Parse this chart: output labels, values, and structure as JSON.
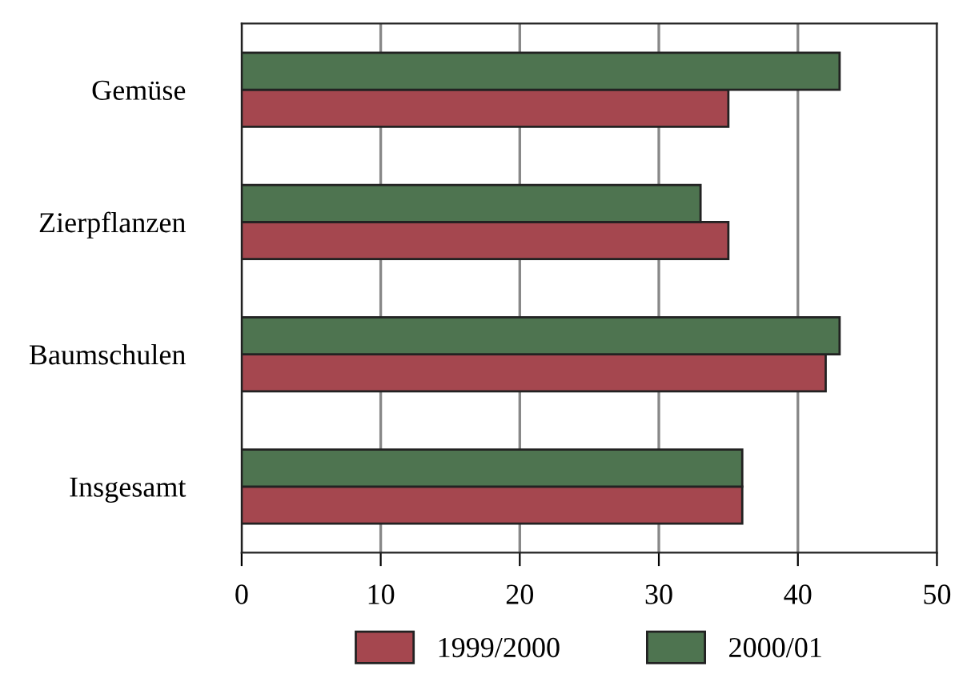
{
  "chart_data": {
    "type": "bar",
    "orientation": "horizontal",
    "categories": [
      "Gemüse",
      "Zierpflanzen",
      "Baumschulen",
      "Insgesamt"
    ],
    "series": [
      {
        "name": "1999/2000",
        "color": "#a5474f",
        "values": [
          35,
          35,
          42,
          36
        ]
      },
      {
        "name": "2000/01",
        "color": "#4e7450",
        "values": [
          43,
          33,
          43,
          36
        ]
      }
    ],
    "xlim": [
      0,
      50
    ],
    "xticks": [
      0,
      10,
      20,
      30,
      40,
      50
    ],
    "grid": "x",
    "legend": "bottom"
  }
}
